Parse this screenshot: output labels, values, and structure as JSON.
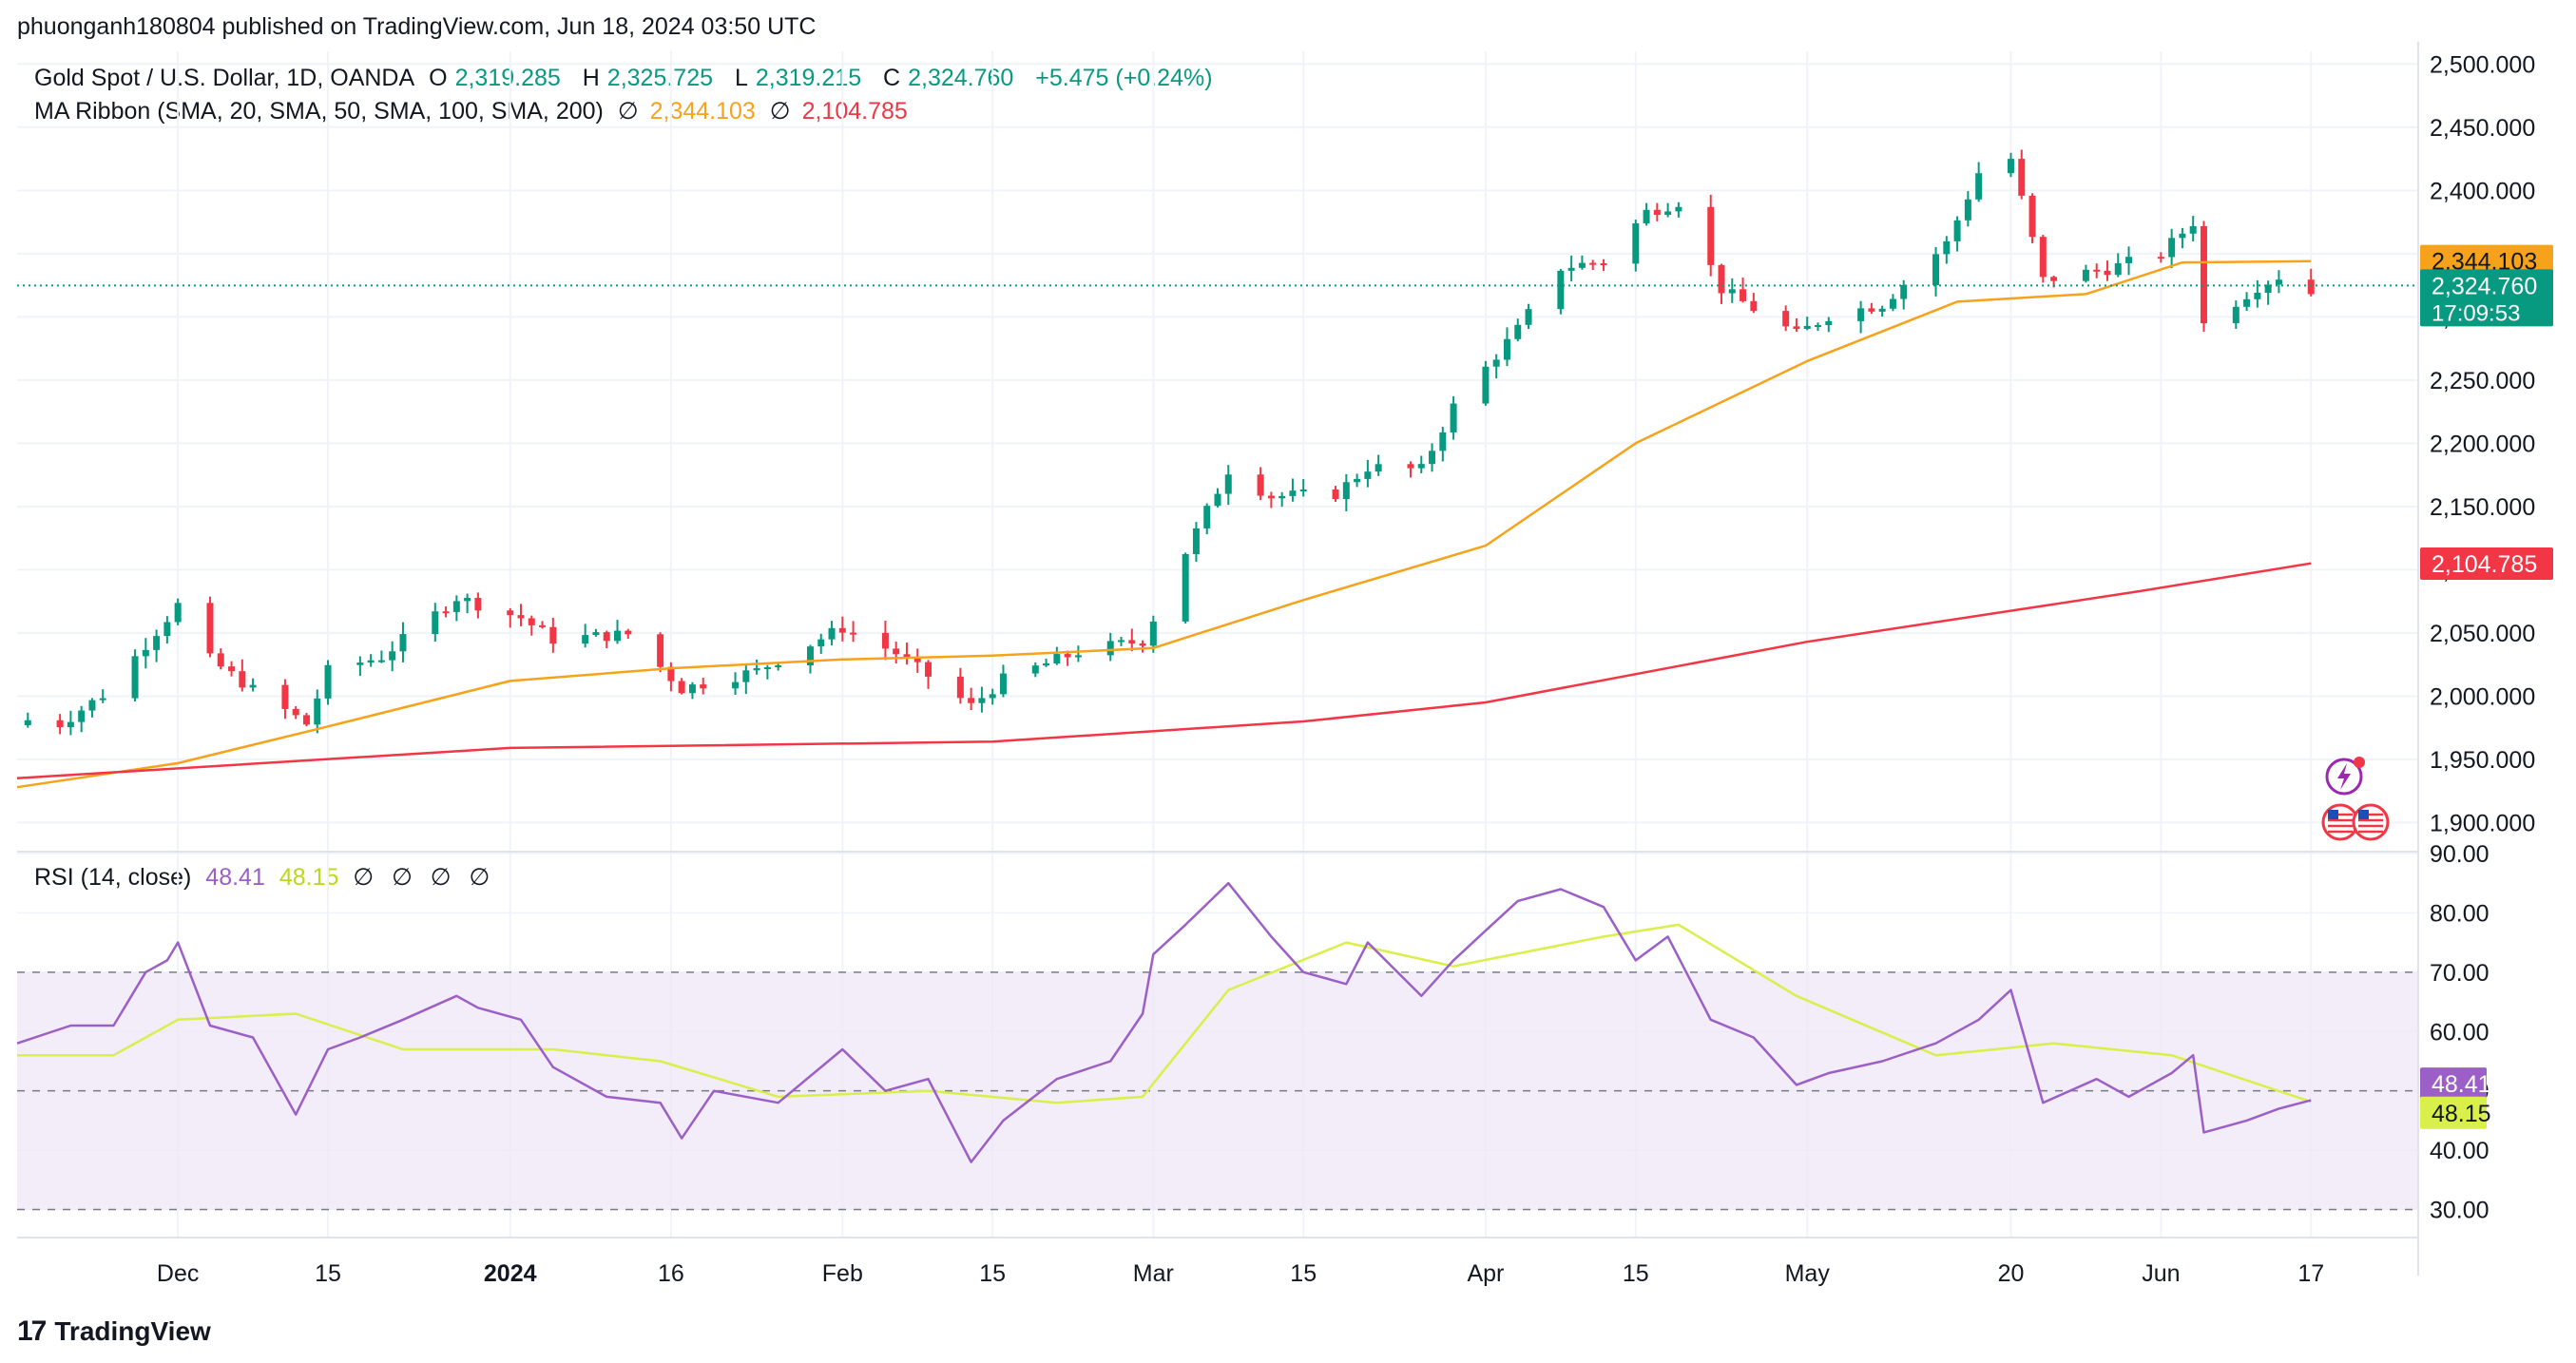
{
  "caption": "phuonganh180804 published on TradingView.com, Jun 18, 2024 03:50 UTC",
  "legend_main": {
    "title": "Gold Spot / U.S. Dollar, 1D, OANDA",
    "o_label": "O",
    "o": "2,319.285",
    "h_label": "H",
    "h": "2,325.725",
    "l_label": "L",
    "l": "2,319.215",
    "c_label": "C",
    "c": "2,324.760",
    "change": "+5.475 (+0.24%)"
  },
  "legend_ma": {
    "title": "MA Ribbon (SMA, 20, SMA, 50, SMA, 100, SMA, 200)",
    "null1": "∅",
    "v1": "2,344.103",
    "null2": "∅",
    "v2": "2,104.785"
  },
  "legend_rsi": {
    "title": "RSI (14, close)",
    "rsi": "48.41",
    "ma": "48.15",
    "nulls": [
      "∅",
      "∅",
      "∅",
      "∅"
    ]
  },
  "footer": {
    "logo_mark": "17",
    "logo_text": "TradingView"
  },
  "colors": {
    "up": "#089981",
    "down": "#f23645",
    "sma50": "#f7a21b",
    "sma200": "#f23645",
    "rsi": "#9c5fc7",
    "rsi_ma": "#d9ef4a",
    "band": "#ede7f6"
  },
  "chart_data": [
    {
      "type": "candlestick",
      "symbol": "Gold Spot / U.S. Dollar, 1D, OANDA",
      "ylim": [
        1880,
        2510
      ],
      "y_ticks": [
        "2,500.000",
        "2,450.000",
        "2,400.000",
        "2,350.000",
        "2,300.000",
        "2,250.000",
        "2,200.000",
        "2,150.000",
        "2,100.000",
        "2,050.000",
        "2,000.000",
        "1,950.000",
        "1,900.000"
      ],
      "x_ticks": [
        {
          "label": "Dec",
          "date": "2023-12-01",
          "bold": false
        },
        {
          "label": "15",
          "date": "2023-12-15",
          "bold": false
        },
        {
          "label": "2024",
          "date": "2024-01-01",
          "bold": true
        },
        {
          "label": "16",
          "date": "2024-01-16",
          "bold": false
        },
        {
          "label": "Feb",
          "date": "2024-02-01",
          "bold": false
        },
        {
          "label": "15",
          "date": "2024-02-15",
          "bold": false
        },
        {
          "label": "Mar",
          "date": "2024-03-01",
          "bold": false
        },
        {
          "label": "15",
          "date": "2024-03-15",
          "bold": false
        },
        {
          "label": "Apr",
          "date": "2024-04-01",
          "bold": false
        },
        {
          "label": "15",
          "date": "2024-04-15",
          "bold": false
        },
        {
          "label": "May",
          "date": "2024-05-01",
          "bold": false
        },
        {
          "label": "20",
          "date": "2024-05-20",
          "bold": false
        },
        {
          "label": "Jun",
          "date": "2024-06-03",
          "bold": false
        },
        {
          "label": "17",
          "date": "2024-06-17",
          "bold": false
        }
      ],
      "x_range": [
        "2023-11-16",
        "2024-06-27"
      ],
      "last_price": 2324.76,
      "last_price_label": "2,324.760",
      "countdown": "17:09:53",
      "sma50_label": "2,344.103",
      "sma200_label": "2,104.785",
      "key_closes": [
        [
          "2023-11-17",
          1981
        ],
        [
          "2023-11-20",
          1978
        ],
        [
          "2023-11-24",
          2001
        ],
        [
          "2023-11-28",
          2041
        ],
        [
          "2023-12-01",
          2072
        ],
        [
          "2023-12-04",
          2029
        ],
        [
          "2023-12-08",
          2005
        ],
        [
          "2023-12-13",
          1978
        ],
        [
          "2023-12-15",
          2020
        ],
        [
          "2023-12-20",
          2031
        ],
        [
          "2023-12-27",
          2078
        ],
        [
          "2024-01-02",
          2062
        ],
        [
          "2024-01-05",
          2045
        ],
        [
          "2024-01-12",
          2049
        ],
        [
          "2024-01-17",
          2006
        ],
        [
          "2024-01-24",
          2020
        ],
        [
          "2024-02-01",
          2054
        ],
        [
          "2024-02-06",
          2034
        ],
        [
          "2024-02-13",
          1992
        ],
        [
          "2024-02-16",
          2013
        ],
        [
          "2024-02-23",
          2035
        ],
        [
          "2024-02-29",
          2044
        ],
        [
          "2024-03-04",
          2114
        ],
        [
          "2024-03-08",
          2179
        ],
        [
          "2024-03-12",
          2158
        ],
        [
          "2024-03-18",
          2160
        ],
        [
          "2024-03-21",
          2181
        ],
        [
          "2024-03-26",
          2179
        ],
        [
          "2024-03-29",
          2229
        ],
        [
          "2024-04-04",
          2290
        ],
        [
          "2024-04-08",
          2339
        ],
        [
          "2024-04-12",
          2344
        ],
        [
          "2024-04-16",
          2383
        ],
        [
          "2024-04-19",
          2391
        ],
        [
          "2024-04-23",
          2322
        ],
        [
          "2024-04-30",
          2286
        ],
        [
          "2024-05-03",
          2301
        ],
        [
          "2024-05-08",
          2310
        ],
        [
          "2024-05-14",
          2358
        ],
        [
          "2024-05-17",
          2414
        ],
        [
          "2024-05-20",
          2425
        ],
        [
          "2024-05-23",
          2329
        ],
        [
          "2024-05-29",
          2338
        ],
        [
          "2024-06-03",
          2350
        ],
        [
          "2024-06-06",
          2375
        ],
        [
          "2024-06-07",
          2294
        ],
        [
          "2024-06-12",
          2324
        ],
        [
          "2024-06-14",
          2332
        ],
        [
          "2024-06-17",
          2319
        ]
      ],
      "sma50": [
        [
          "2023-11-16",
          1928
        ],
        [
          "2023-12-01",
          1947
        ],
        [
          "2023-12-15",
          1976
        ],
        [
          "2024-01-01",
          2012
        ],
        [
          "2024-01-16",
          2022
        ],
        [
          "2024-02-01",
          2029
        ],
        [
          "2024-02-15",
          2032
        ],
        [
          "2024-03-01",
          2038
        ],
        [
          "2024-03-15",
          2076
        ],
        [
          "2024-04-01",
          2119
        ],
        [
          "2024-04-15",
          2200
        ],
        [
          "2024-05-01",
          2265
        ],
        [
          "2024-05-15",
          2312
        ],
        [
          "2024-05-27",
          2318
        ],
        [
          "2024-06-05",
          2343
        ],
        [
          "2024-06-17",
          2344
        ]
      ],
      "sma200": [
        [
          "2023-11-16",
          1935
        ],
        [
          "2024-01-01",
          1959
        ],
        [
          "2024-02-15",
          1964
        ],
        [
          "2024-03-15",
          1980
        ],
        [
          "2024-04-01",
          1995
        ],
        [
          "2024-05-01",
          2043
        ],
        [
          "2024-06-01",
          2083
        ],
        [
          "2024-06-17",
          2105
        ]
      ]
    },
    {
      "type": "line",
      "name": "RSI (14, close)",
      "ylim": [
        28,
        90
      ],
      "y_ticks": [
        "90.00",
        "80.00",
        "70.00",
        "60.00",
        "50.00",
        "40.00",
        "30.00"
      ],
      "band": [
        30,
        70
      ],
      "midline": 50,
      "rsi_label": "48.41",
      "ma_label": "48.15",
      "rsi": [
        [
          "2023-11-16",
          58
        ],
        [
          "2023-11-21",
          61
        ],
        [
          "2023-11-25",
          61
        ],
        [
          "2023-11-28",
          70
        ],
        [
          "2023-11-30",
          72
        ],
        [
          "2023-12-01",
          75
        ],
        [
          "2023-12-04",
          61
        ],
        [
          "2023-12-08",
          59
        ],
        [
          "2023-12-12",
          46
        ],
        [
          "2023-12-15",
          57
        ],
        [
          "2023-12-18",
          59
        ],
        [
          "2023-12-22",
          62
        ],
        [
          "2023-12-27",
          66
        ],
        [
          "2023-12-29",
          64
        ],
        [
          "2024-01-02",
          62
        ],
        [
          "2024-01-05",
          54
        ],
        [
          "2024-01-10",
          49
        ],
        [
          "2024-01-15",
          48
        ],
        [
          "2024-01-17",
          42
        ],
        [
          "2024-01-20",
          50
        ],
        [
          "2024-01-26",
          48
        ],
        [
          "2024-02-01",
          57
        ],
        [
          "2024-02-05",
          50
        ],
        [
          "2024-02-09",
          52
        ],
        [
          "2024-02-13",
          38
        ],
        [
          "2024-02-16",
          45
        ],
        [
          "2024-02-21",
          52
        ],
        [
          "2024-02-26",
          55
        ],
        [
          "2024-02-29",
          63
        ],
        [
          "2024-03-01",
          73
        ],
        [
          "2024-03-04",
          78
        ],
        [
          "2024-03-08",
          85
        ],
        [
          "2024-03-12",
          76
        ],
        [
          "2024-03-15",
          70
        ],
        [
          "2024-03-19",
          68
        ],
        [
          "2024-03-21",
          75
        ],
        [
          "2024-03-26",
          66
        ],
        [
          "2024-03-29",
          72
        ],
        [
          "2024-04-01",
          77
        ],
        [
          "2024-04-04",
          82
        ],
        [
          "2024-04-08",
          84
        ],
        [
          "2024-04-12",
          81
        ],
        [
          "2024-04-15",
          72
        ],
        [
          "2024-04-18",
          76
        ],
        [
          "2024-04-22",
          62
        ],
        [
          "2024-04-26",
          59
        ],
        [
          "2024-04-30",
          51
        ],
        [
          "2024-05-03",
          53
        ],
        [
          "2024-05-08",
          55
        ],
        [
          "2024-05-13",
          58
        ],
        [
          "2024-05-17",
          62
        ],
        [
          "2024-05-20",
          67
        ],
        [
          "2024-05-23",
          48
        ],
        [
          "2024-05-28",
          52
        ],
        [
          "2024-05-31",
          49
        ],
        [
          "2024-06-04",
          53
        ],
        [
          "2024-06-06",
          56
        ],
        [
          "2024-06-07",
          43
        ],
        [
          "2024-06-11",
          45
        ],
        [
          "2024-06-14",
          47
        ],
        [
          "2024-06-17",
          48.41
        ]
      ],
      "rsi_ma": [
        [
          "2023-11-16",
          56
        ],
        [
          "2023-11-25",
          56
        ],
        [
          "2023-12-01",
          62
        ],
        [
          "2023-12-12",
          63
        ],
        [
          "2023-12-22",
          57
        ],
        [
          "2024-01-05",
          57
        ],
        [
          "2024-01-15",
          55
        ],
        [
          "2024-01-26",
          49
        ],
        [
          "2024-02-09",
          50
        ],
        [
          "2024-02-21",
          48
        ],
        [
          "2024-02-29",
          49
        ],
        [
          "2024-03-08",
          67
        ],
        [
          "2024-03-19",
          75
        ],
        [
          "2024-03-29",
          71
        ],
        [
          "2024-04-12",
          76
        ],
        [
          "2024-04-19",
          78
        ],
        [
          "2024-04-30",
          66
        ],
        [
          "2024-05-13",
          56
        ],
        [
          "2024-05-24",
          58
        ],
        [
          "2024-06-04",
          56
        ],
        [
          "2024-06-17",
          48.15
        ]
      ]
    }
  ]
}
